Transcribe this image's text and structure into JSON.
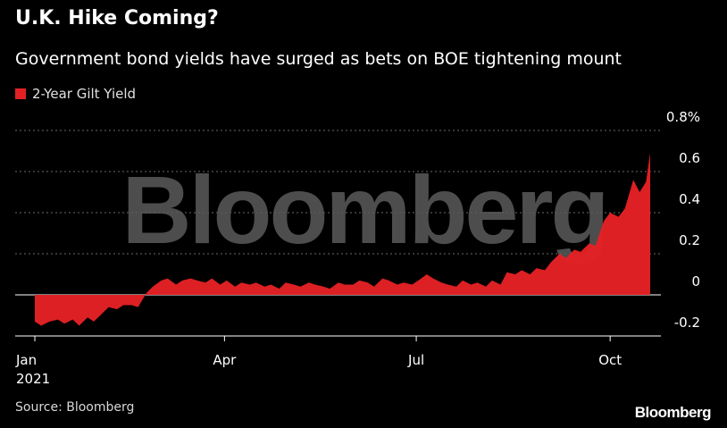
{
  "colors": {
    "background": "#000000",
    "series": "#e32125",
    "grid": "#6a6a6a",
    "text": "#ffffff",
    "watermark": "#5a5a5a"
  },
  "watermark": "Bloomberg",
  "source": "Source: Bloomberg",
  "brand": "Bloomberg",
  "chart_data": {
    "type": "area",
    "title": "U.K. Hike Coming?",
    "subtitle": "Government bond yields have surged as bets on BOE tightening mount",
    "legend": "2-Year Gilt Yield",
    "legend_position": "top-left",
    "grid": "horizontal dotted",
    "ylim": [
      -0.2,
      0.8
    ],
    "y_ticks": [
      {
        "value": 0.8,
        "label": "0.8%"
      },
      {
        "value": 0.6,
        "label": "0.6"
      },
      {
        "value": 0.4,
        "label": "0.4"
      },
      {
        "value": 0.2,
        "label": "0.2"
      },
      {
        "value": 0,
        "label": "0"
      },
      {
        "value": -0.2,
        "label": "-0.2"
      }
    ],
    "x_ticks": [
      {
        "date": "2021-01-01",
        "label": "Jan",
        "sublabel": "2021"
      },
      {
        "date": "2021-04-01",
        "label": "Apr",
        "sublabel": ""
      },
      {
        "date": "2021-07-01",
        "label": "Jul",
        "sublabel": ""
      },
      {
        "date": "2021-10-01",
        "label": "Oct",
        "sublabel": ""
      }
    ],
    "xlim": [
      "2021-01-01",
      "2021-10-20"
    ],
    "series": [
      {
        "name": "2-Year Gilt Yield",
        "x": [
          "2021-01-01",
          "2021-01-04",
          "2021-01-08",
          "2021-01-12",
          "2021-01-15",
          "2021-01-19",
          "2021-01-22",
          "2021-01-26",
          "2021-01-29",
          "2021-02-02",
          "2021-02-05",
          "2021-02-09",
          "2021-02-12",
          "2021-02-16",
          "2021-02-19",
          "2021-02-23",
          "2021-02-26",
          "2021-03-02",
          "2021-03-05",
          "2021-03-09",
          "2021-03-12",
          "2021-03-16",
          "2021-03-19",
          "2021-03-23",
          "2021-03-26",
          "2021-03-30",
          "2021-04-02",
          "2021-04-06",
          "2021-04-09",
          "2021-04-13",
          "2021-04-16",
          "2021-04-20",
          "2021-04-23",
          "2021-04-27",
          "2021-04-30",
          "2021-05-04",
          "2021-05-07",
          "2021-05-11",
          "2021-05-14",
          "2021-05-18",
          "2021-05-21",
          "2021-05-25",
          "2021-05-28",
          "2021-06-01",
          "2021-06-04",
          "2021-06-08",
          "2021-06-11",
          "2021-06-15",
          "2021-06-18",
          "2021-06-22",
          "2021-06-25",
          "2021-06-29",
          "2021-07-02",
          "2021-07-06",
          "2021-07-09",
          "2021-07-13",
          "2021-07-16",
          "2021-07-20",
          "2021-07-23",
          "2021-07-27",
          "2021-07-30",
          "2021-08-03",
          "2021-08-06",
          "2021-08-10",
          "2021-08-13",
          "2021-08-17",
          "2021-08-20",
          "2021-08-24",
          "2021-08-27",
          "2021-08-31",
          "2021-09-03",
          "2021-09-07",
          "2021-09-10",
          "2021-09-14",
          "2021-09-17",
          "2021-09-21",
          "2021-09-24",
          "2021-09-28",
          "2021-10-01",
          "2021-10-05",
          "2021-10-08",
          "2021-10-12",
          "2021-10-15",
          "2021-10-18",
          "2021-10-20"
        ],
        "y": [
          -0.13,
          -0.15,
          -0.13,
          -0.12,
          -0.14,
          -0.12,
          -0.15,
          -0.11,
          -0.13,
          -0.09,
          -0.06,
          -0.07,
          -0.05,
          -0.05,
          -0.06,
          0.01,
          0.04,
          0.07,
          0.08,
          0.05,
          0.07,
          0.08,
          0.07,
          0.06,
          0.08,
          0.05,
          0.07,
          0.04,
          0.06,
          0.05,
          0.06,
          0.04,
          0.05,
          0.03,
          0.06,
          0.05,
          0.04,
          0.06,
          0.05,
          0.04,
          0.03,
          0.06,
          0.05,
          0.05,
          0.07,
          0.06,
          0.04,
          0.08,
          0.07,
          0.05,
          0.06,
          0.05,
          0.07,
          0.1,
          0.08,
          0.06,
          0.05,
          0.04,
          0.07,
          0.05,
          0.06,
          0.04,
          0.07,
          0.05,
          0.11,
          0.1,
          0.12,
          0.1,
          0.13,
          0.12,
          0.16,
          0.2,
          0.18,
          0.22,
          0.21,
          0.25,
          0.24,
          0.36,
          0.4,
          0.38,
          0.42,
          0.56,
          0.5,
          0.55,
          0.69
        ]
      }
    ]
  }
}
